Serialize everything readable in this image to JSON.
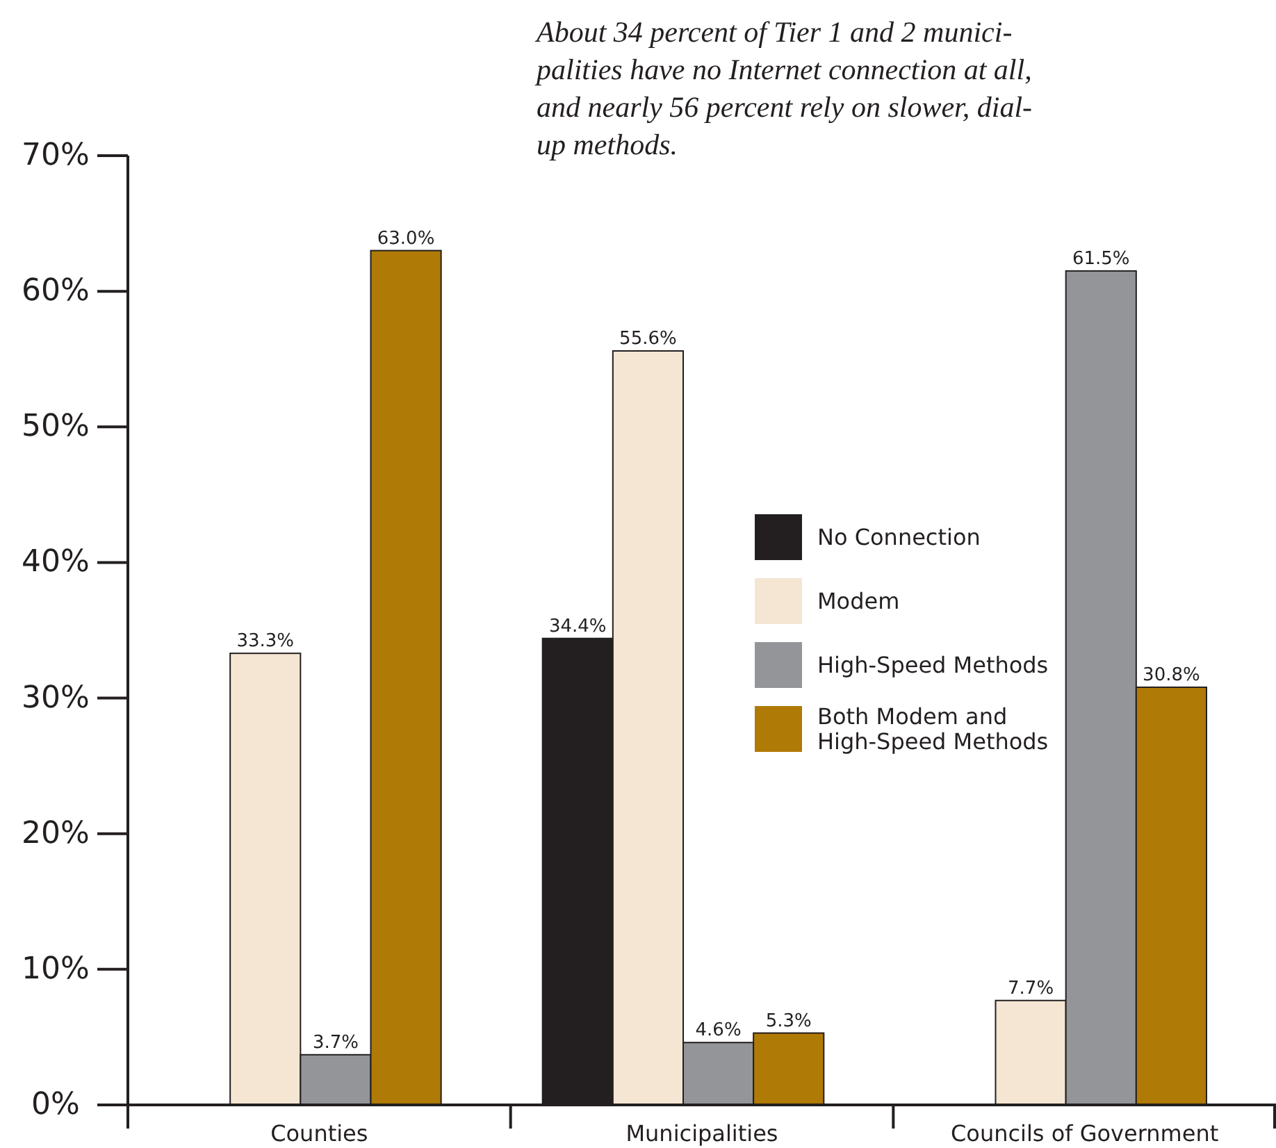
{
  "chart_data": {
    "type": "bar",
    "title": "About 34 percent of Tier 1 and 2 munici-\npalities have no Internet connection at all,\nand nearly 56 percent rely on slower, dial-\nup methods.",
    "categories": [
      "Counties",
      "Municipalities",
      "Councils of Government"
    ],
    "series": [
      {
        "name": "No Connection",
        "color": "#231f20",
        "values": [
          null,
          34.4,
          null
        ],
        "value_labels": [
          null,
          "34.4%",
          null
        ]
      },
      {
        "name": "Modem",
        "color": "#f5e6d3",
        "values": [
          33.3,
          55.6,
          7.7
        ],
        "value_labels": [
          "33.3%",
          "55.6%",
          "7.7%"
        ]
      },
      {
        "name": "High-Speed Methods",
        "color": "#939598",
        "values": [
          3.7,
          4.6,
          61.5
        ],
        "value_labels": [
          "3.7%",
          "4.6%",
          "61.5%"
        ]
      },
      {
        "name": "Both Modem and\nHigh-Speed Methods",
        "color": "#b07a06",
        "values": [
          63.0,
          5.3,
          30.8
        ],
        "value_labels": [
          "63.0%",
          "5.3%",
          "30.8%"
        ]
      }
    ],
    "ylim": [
      0,
      70
    ],
    "yticks": [
      {
        "value": 0,
        "label": "0%"
      },
      {
        "value": 10,
        "label": "10%"
      },
      {
        "value": 20,
        "label": "20%"
      },
      {
        "value": 30,
        "label": "30%"
      },
      {
        "value": 40,
        "label": "40%"
      },
      {
        "value": 50,
        "label": "50%"
      },
      {
        "value": 60,
        "label": "60%"
      },
      {
        "value": 70,
        "label": "70%"
      }
    ],
    "grid": false,
    "legend": "right"
  }
}
